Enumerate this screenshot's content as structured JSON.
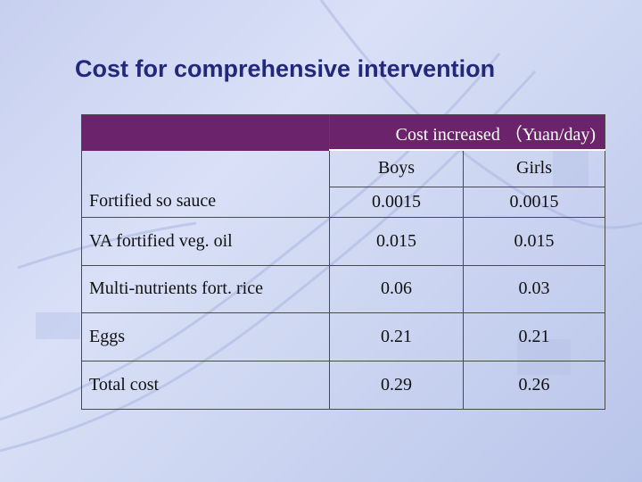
{
  "slide": {
    "title": "Cost for comprehensive intervention",
    "colors": {
      "title": "#23297a",
      "header_band": "#6b246b",
      "background": "#cdd6f1"
    }
  },
  "table": {
    "group_header": "Cost increased （Yuan/day)",
    "columns": [
      "Boys",
      "Girls"
    ],
    "rows": [
      {
        "label": "Fortified so sauce",
        "boys": "0.0015",
        "girls": "0.0015"
      },
      {
        "label": "VA fortified veg. oil",
        "boys": "0.015",
        "girls": "0.015"
      },
      {
        "label": "Multi-nutrients fort. rice",
        "boys": "0.06",
        "girls": "0.03"
      },
      {
        "label": "Eggs",
        "boys": "0.21",
        "girls": "0.21"
      },
      {
        "label": "Total cost",
        "boys": "0.29",
        "girls": "0.26"
      }
    ]
  }
}
